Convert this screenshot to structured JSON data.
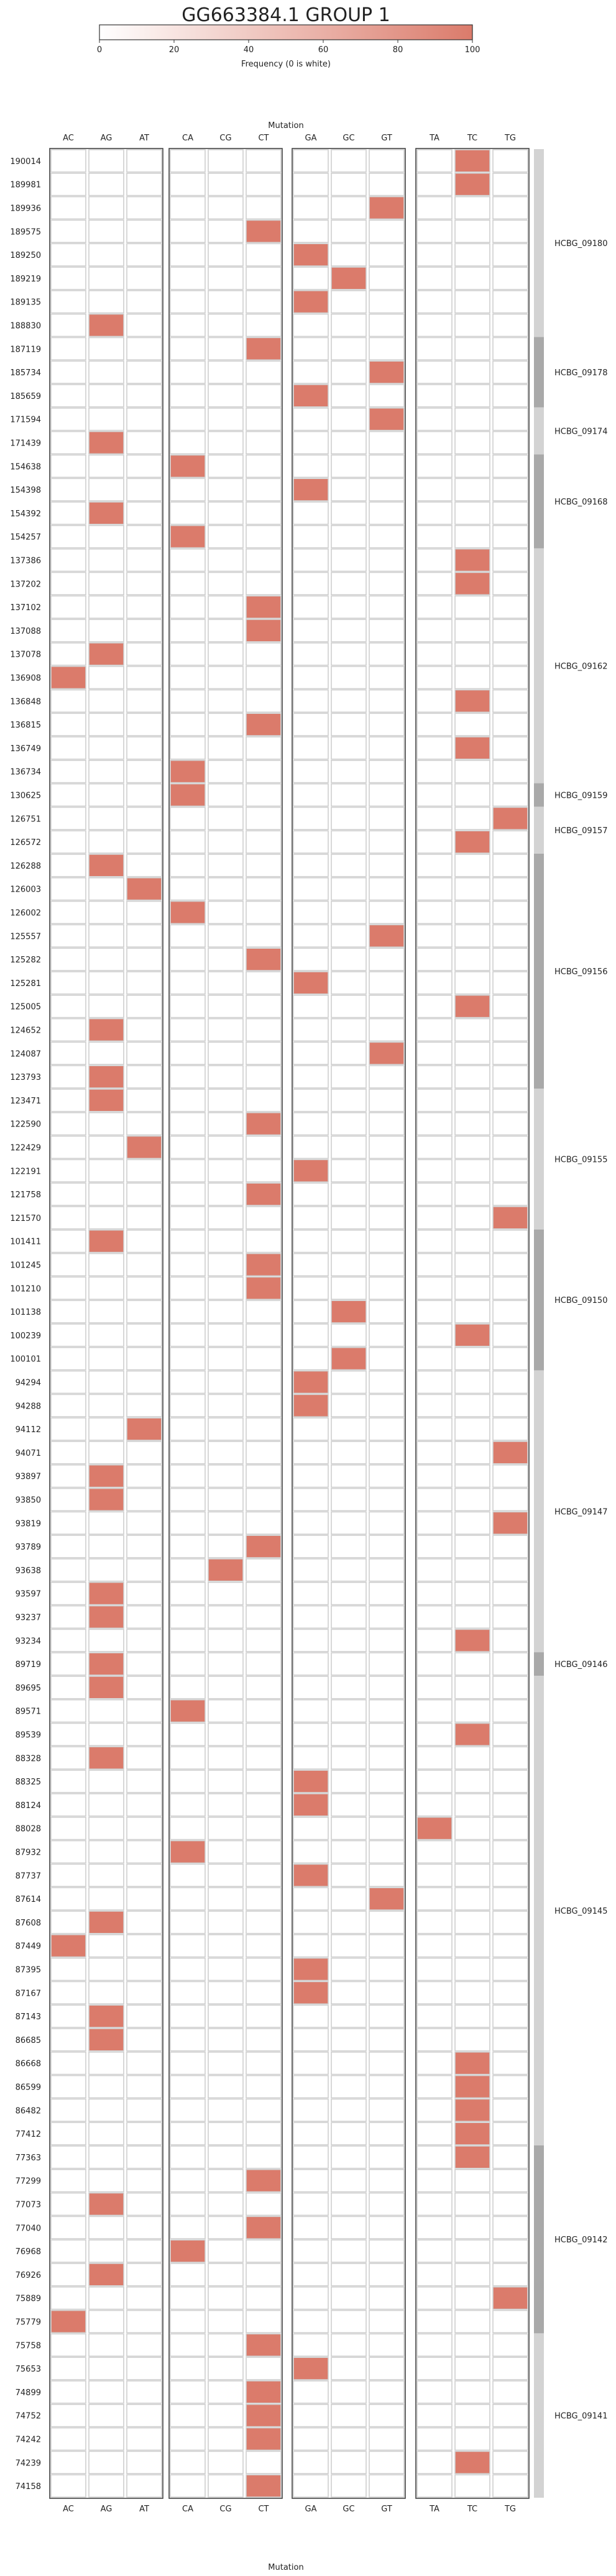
{
  "chart_data": {
    "type": "heatmap",
    "title": "GG663384.1 GROUP 1",
    "colorbar": {
      "label": "Frequency (0 is white)",
      "ticks": [
        0,
        20,
        40,
        60,
        80,
        100
      ],
      "min": 0,
      "max": 100,
      "low_color": "#ffffff",
      "high_color": "#db7b6b"
    },
    "xlabel": "Mutation",
    "column_groups": [
      [
        "AC",
        "AG",
        "AT"
      ],
      [
        "CA",
        "CG",
        "CT"
      ],
      [
        "GA",
        "GC",
        "GT"
      ],
      [
        "TA",
        "TC",
        "TG"
      ]
    ],
    "rows": [
      {
        "label": "190014",
        "mutation": "TC",
        "value": 100
      },
      {
        "label": "189981",
        "mutation": "TC",
        "value": 100
      },
      {
        "label": "189936",
        "mutation": "GT",
        "value": 100
      },
      {
        "label": "189575",
        "mutation": "CT",
        "value": 100
      },
      {
        "label": "189250",
        "mutation": "GA",
        "value": 100
      },
      {
        "label": "189219",
        "mutation": "GC",
        "value": 100
      },
      {
        "label": "189135",
        "mutation": "GA",
        "value": 100
      },
      {
        "label": "188830",
        "mutation": "AG",
        "value": 100
      },
      {
        "label": "187119",
        "mutation": "CT",
        "value": 100
      },
      {
        "label": "185734",
        "mutation": "GT",
        "value": 100
      },
      {
        "label": "185659",
        "mutation": "GA",
        "value": 100
      },
      {
        "label": "171594",
        "mutation": "GT",
        "value": 100
      },
      {
        "label": "171439",
        "mutation": "AG",
        "value": 100
      },
      {
        "label": "154638",
        "mutation": "CA",
        "value": 100
      },
      {
        "label": "154398",
        "mutation": "GA",
        "value": 100
      },
      {
        "label": "154392",
        "mutation": "AG",
        "value": 100
      },
      {
        "label": "154257",
        "mutation": "CA",
        "value": 100
      },
      {
        "label": "137386",
        "mutation": "TC",
        "value": 100
      },
      {
        "label": "137202",
        "mutation": "TC",
        "value": 100
      },
      {
        "label": "137102",
        "mutation": "CT",
        "value": 100
      },
      {
        "label": "137088",
        "mutation": "CT",
        "value": 100
      },
      {
        "label": "137078",
        "mutation": "AG",
        "value": 100
      },
      {
        "label": "136908",
        "mutation": "AC",
        "value": 100
      },
      {
        "label": "136848",
        "mutation": "TC",
        "value": 100
      },
      {
        "label": "136815",
        "mutation": "CT",
        "value": 100
      },
      {
        "label": "136749",
        "mutation": "TC",
        "value": 100
      },
      {
        "label": "136734",
        "mutation": "CA",
        "value": 100
      },
      {
        "label": "130625",
        "mutation": "CA",
        "value": 100
      },
      {
        "label": "126751",
        "mutation": "TG",
        "value": 100
      },
      {
        "label": "126572",
        "mutation": "TC",
        "value": 100
      },
      {
        "label": "126288",
        "mutation": "AG",
        "value": 100
      },
      {
        "label": "126003",
        "mutation": "AT",
        "value": 100
      },
      {
        "label": "126002",
        "mutation": "CA",
        "value": 100
      },
      {
        "label": "125557",
        "mutation": "GT",
        "value": 100
      },
      {
        "label": "125282",
        "mutation": "CT",
        "value": 100
      },
      {
        "label": "125281",
        "mutation": "GA",
        "value": 100
      },
      {
        "label": "125005",
        "mutation": "TC",
        "value": 100
      },
      {
        "label": "124652",
        "mutation": "AG",
        "value": 100
      },
      {
        "label": "124087",
        "mutation": "GT",
        "value": 100
      },
      {
        "label": "123793",
        "mutation": "AG",
        "value": 100
      },
      {
        "label": "123471",
        "mutation": "AG",
        "value": 100
      },
      {
        "label": "122590",
        "mutation": "CT",
        "value": 100
      },
      {
        "label": "122429",
        "mutation": "AT",
        "value": 100
      },
      {
        "label": "122191",
        "mutation": "GA",
        "value": 100
      },
      {
        "label": "121758",
        "mutation": "CT",
        "value": 100
      },
      {
        "label": "121570",
        "mutation": "TG",
        "value": 100
      },
      {
        "label": "101411",
        "mutation": "AG",
        "value": 100
      },
      {
        "label": "101245",
        "mutation": "CT",
        "value": 100
      },
      {
        "label": "101210",
        "mutation": "CT",
        "value": 100
      },
      {
        "label": "101138",
        "mutation": "GC",
        "value": 100
      },
      {
        "label": "100239",
        "mutation": "TC",
        "value": 100
      },
      {
        "label": "100101",
        "mutation": "GC",
        "value": 100
      },
      {
        "label": "94294",
        "mutation": "GA",
        "value": 100
      },
      {
        "label": "94288",
        "mutation": "GA",
        "value": 100
      },
      {
        "label": "94112",
        "mutation": "AT",
        "value": 100
      },
      {
        "label": "94071",
        "mutation": "TG",
        "value": 100
      },
      {
        "label": "93897",
        "mutation": "AG",
        "value": 100
      },
      {
        "label": "93850",
        "mutation": "AG",
        "value": 100
      },
      {
        "label": "93819",
        "mutation": "TG",
        "value": 100
      },
      {
        "label": "93789",
        "mutation": "CT",
        "value": 100
      },
      {
        "label": "93638",
        "mutation": "CG",
        "value": 100
      },
      {
        "label": "93597",
        "mutation": "AG",
        "value": 100
      },
      {
        "label": "93237",
        "mutation": "AG",
        "value": 100
      },
      {
        "label": "93234",
        "mutation": "TC",
        "value": 100
      },
      {
        "label": "89719",
        "mutation": "AG",
        "value": 100
      },
      {
        "label": "89695",
        "mutation": "AG",
        "value": 100
      },
      {
        "label": "89571",
        "mutation": "CA",
        "value": 100
      },
      {
        "label": "89539",
        "mutation": "TC",
        "value": 100
      },
      {
        "label": "88328",
        "mutation": "AG",
        "value": 100
      },
      {
        "label": "88325",
        "mutation": "GA",
        "value": 100
      },
      {
        "label": "88124",
        "mutation": "GA",
        "value": 100
      },
      {
        "label": "88028",
        "mutation": "TA",
        "value": 100
      },
      {
        "label": "87932",
        "mutation": "CA",
        "value": 100
      },
      {
        "label": "87737",
        "mutation": "GA",
        "value": 100
      },
      {
        "label": "87614",
        "mutation": "GT",
        "value": 100
      },
      {
        "label": "87608",
        "mutation": "AG",
        "value": 100
      },
      {
        "label": "87449",
        "mutation": "AC",
        "value": 100
      },
      {
        "label": "87395",
        "mutation": "GA",
        "value": 100
      },
      {
        "label": "87167",
        "mutation": "GA",
        "value": 100
      },
      {
        "label": "87143",
        "mutation": "AG",
        "value": 100
      },
      {
        "label": "86685",
        "mutation": "AG",
        "value": 100
      },
      {
        "label": "86668",
        "mutation": "TC",
        "value": 100
      },
      {
        "label": "86599",
        "mutation": "TC",
        "value": 100
      },
      {
        "label": "86482",
        "mutation": "TC",
        "value": 100
      },
      {
        "label": "77412",
        "mutation": "TC",
        "value": 100
      },
      {
        "label": "77363",
        "mutation": "TC",
        "value": 100
      },
      {
        "label": "77299",
        "mutation": "CT",
        "value": 100
      },
      {
        "label": "77073",
        "mutation": "AG",
        "value": 100
      },
      {
        "label": "77040",
        "mutation": "CT",
        "value": 100
      },
      {
        "label": "76968",
        "mutation": "CA",
        "value": 100
      },
      {
        "label": "76926",
        "mutation": "AG",
        "value": 100
      },
      {
        "label": "75889",
        "mutation": "TG",
        "value": 100
      },
      {
        "label": "75779",
        "mutation": "AC",
        "value": 100
      },
      {
        "label": "75758",
        "mutation": "CT",
        "value": 100
      },
      {
        "label": "75653",
        "mutation": "GA",
        "value": 100
      },
      {
        "label": "74899",
        "mutation": "CT",
        "value": 100
      },
      {
        "label": "74752",
        "mutation": "CT",
        "value": 100
      },
      {
        "label": "74242",
        "mutation": "CT",
        "value": 100
      },
      {
        "label": "74239",
        "mutation": "TC",
        "value": 100
      },
      {
        "label": "74158",
        "mutation": "CT",
        "value": 100
      }
    ],
    "gene_groups": [
      {
        "name": "HCBG_09180",
        "start": 0,
        "end": 8,
        "shade": "#d3d3d3"
      },
      {
        "name": "HCBG_09178",
        "start": 8,
        "end": 11,
        "shade": "#a9a9a9"
      },
      {
        "name": "HCBG_09174",
        "start": 11,
        "end": 13,
        "shade": "#d3d3d3"
      },
      {
        "name": "HCBG_09168",
        "start": 13,
        "end": 17,
        "shade": "#a9a9a9"
      },
      {
        "name": "HCBG_09162",
        "start": 17,
        "end": 27,
        "shade": "#d3d3d3"
      },
      {
        "name": "HCBG_09159",
        "start": 27,
        "end": 28,
        "shade": "#a9a9a9"
      },
      {
        "name": "HCBG_09157",
        "start": 28,
        "end": 30,
        "shade": "#d3d3d3"
      },
      {
        "name": "HCBG_09156",
        "start": 30,
        "end": 40,
        "shade": "#a9a9a9"
      },
      {
        "name": "HCBG_09155",
        "start": 40,
        "end": 46,
        "shade": "#d3d3d3"
      },
      {
        "name": "HCBG_09150",
        "start": 46,
        "end": 52,
        "shade": "#a9a9a9"
      },
      {
        "name": "HCBG_09147",
        "start": 52,
        "end": 64,
        "shade": "#d3d3d3"
      },
      {
        "name": "HCBG_09146",
        "start": 64,
        "end": 65,
        "shade": "#a9a9a9"
      },
      {
        "name": "HCBG_09145",
        "start": 65,
        "end": 85,
        "shade": "#d3d3d3"
      },
      {
        "name": "HCBG_09142",
        "start": 85,
        "end": 93,
        "shade": "#a9a9a9"
      },
      {
        "name": "HCBG_09141",
        "start": 93,
        "end": 100,
        "shade": "#d3d3d3"
      }
    ]
  }
}
